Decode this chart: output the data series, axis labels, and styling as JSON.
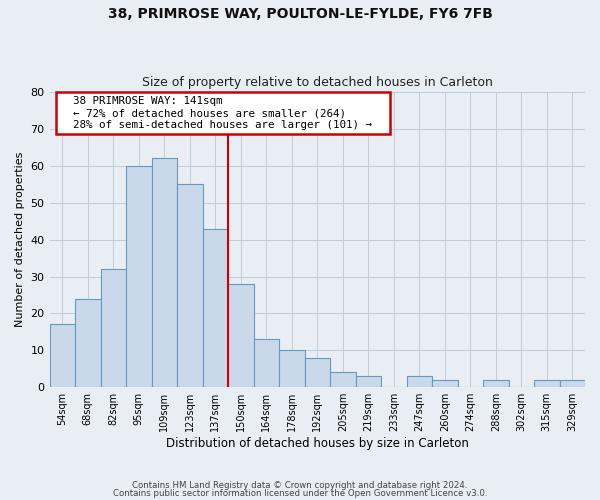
{
  "title": "38, PRIMROSE WAY, POULTON-LE-FYLDE, FY6 7FB",
  "subtitle": "Size of property relative to detached houses in Carleton",
  "xlabel": "Distribution of detached houses by size in Carleton",
  "ylabel": "Number of detached properties",
  "bar_labels": [
    "54sqm",
    "68sqm",
    "82sqm",
    "95sqm",
    "109sqm",
    "123sqm",
    "137sqm",
    "150sqm",
    "164sqm",
    "178sqm",
    "192sqm",
    "205sqm",
    "219sqm",
    "233sqm",
    "247sqm",
    "260sqm",
    "274sqm",
    "288sqm",
    "302sqm",
    "315sqm",
    "329sqm"
  ],
  "bar_values": [
    17,
    24,
    32,
    60,
    62,
    55,
    43,
    28,
    13,
    10,
    8,
    4,
    3,
    0,
    3,
    2,
    0,
    2,
    0,
    2,
    2
  ],
  "bar_color": "#c9d9ea",
  "bar_edge_color": "#6699bb",
  "vline_color": "#cc0000",
  "ylim": [
    0,
    80
  ],
  "yticks": [
    0,
    10,
    20,
    30,
    40,
    50,
    60,
    70,
    80
  ],
  "annotation_text1": "38 PRIMROSE WAY: 141sqm",
  "annotation_text2": "← 72% of detached houses are smaller (264)",
  "annotation_text3": "28% of semi-detached houses are larger (101) →",
  "annotation_box_color": "#ffffff",
  "annotation_border_color": "#cc0000",
  "footnote1": "Contains HM Land Registry data © Crown copyright and database right 2024.",
  "footnote2": "Contains public sector information licensed under the Open Government Licence v3.0.",
  "bg_color": "#e8eef4",
  "plot_bg_color": "#e8eef4",
  "grid_color": "#c0ccd8"
}
